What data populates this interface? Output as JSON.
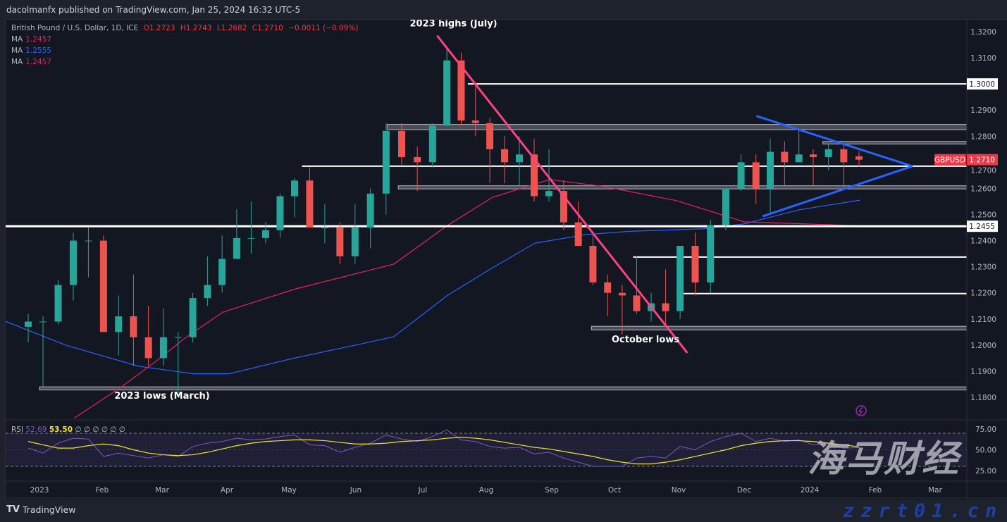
{
  "header": {
    "published": "dacolmanfx published on TradingView.com, Jan 25, 2024 16:32 UTC-5"
  },
  "legend": {
    "symbol": "British Pound / U.S. Dollar, 1D, ICE",
    "o": "O1.2723",
    "h": "H1.2743",
    "l": "L1.2682",
    "c": "C1.2710",
    "chg": "−0.0011 (−0.09%)",
    "ma": [
      {
        "label": "MA",
        "value": "1.2457",
        "color": "#e91e63"
      },
      {
        "label": "MA",
        "value": "1.2555",
        "color": "#2962ff"
      },
      {
        "label": "MA",
        "value": "1.2457",
        "color": "#e91e63"
      }
    ]
  },
  "rsi_legend": {
    "label": "RSI",
    "rsi": "52.69",
    "ma": "53.50",
    "empties": "∅ ∅ ∅ ∅ ∅ ∅"
  },
  "footer": {
    "brand": "TradingView"
  },
  "watermark": {
    "cn": "海马财经",
    "url": "zzrt01.cn"
  },
  "chart_data": {
    "type": "candlestick",
    "symbol_tag": "GBPUSD",
    "last_price": "1.2710",
    "colors": {
      "up": "#26a69a",
      "down": "#ef5350",
      "ma_pink": "#e91e63",
      "ma_blue": "#2962ff",
      "rsi": "#7e57c2",
      "rsi_ma": "#f5e51b",
      "last_tag": "#f23645"
    },
    "ylim": [
      1.176,
      1.324
    ],
    "y_ticks": [
      "1.3200",
      "1.3100",
      "1.3000",
      "1.2900",
      "1.2800",
      "1.2700",
      "1.2600",
      "1.2500",
      "1.2400",
      "1.2300",
      "1.2200",
      "1.2100",
      "1.2000",
      "1.1900",
      "1.1800"
    ],
    "x_ticks": [
      {
        "label": "2023",
        "date": "2023-01-03"
      },
      {
        "label": "Feb",
        "date": "2023-02-01"
      },
      {
        "label": "Mar",
        "date": "2023-03-01"
      },
      {
        "label": "Apr",
        "date": "2023-04-01"
      },
      {
        "label": "May",
        "date": "2023-05-01"
      },
      {
        "label": "Jun",
        "date": "2023-06-01"
      },
      {
        "label": "Jul",
        "date": "2023-07-01"
      },
      {
        "label": "Aug",
        "date": "2023-08-01"
      },
      {
        "label": "Sep",
        "date": "2023-09-01"
      },
      {
        "label": "Oct",
        "date": "2023-10-01"
      },
      {
        "label": "Nov",
        "date": "2023-11-01"
      },
      {
        "label": "Dec",
        "date": "2023-12-01"
      },
      {
        "label": "2024",
        "date": "2024-01-02"
      },
      {
        "label": "Feb",
        "date": "2024-02-01"
      },
      {
        "label": "Mar",
        "date": "2024-03-01"
      }
    ],
    "candles": [
      [
        "2022-12-26",
        1.207,
        1.212,
        1.201,
        1.209
      ],
      [
        "2023-01-02",
        1.209,
        1.211,
        1.184,
        1.209
      ],
      [
        "2023-01-09",
        1.209,
        1.225,
        1.208,
        1.223
      ],
      [
        "2023-01-16",
        1.223,
        1.243,
        1.217,
        1.24
      ],
      [
        "2023-01-23",
        1.24,
        1.245,
        1.226,
        1.24
      ],
      [
        "2023-01-30",
        1.24,
        1.242,
        1.205,
        1.205
      ],
      [
        "2023-02-06",
        1.205,
        1.219,
        1.196,
        1.211
      ],
      [
        "2023-02-13",
        1.211,
        1.227,
        1.192,
        1.203
      ],
      [
        "2023-02-20",
        1.203,
        1.215,
        1.192,
        1.195
      ],
      [
        "2023-02-27",
        1.195,
        1.214,
        1.192,
        1.203
      ],
      [
        "2023-03-06",
        1.203,
        1.205,
        1.18,
        1.203
      ],
      [
        "2023-03-13",
        1.203,
        1.22,
        1.201,
        1.218
      ],
      [
        "2023-03-20",
        1.218,
        1.234,
        1.215,
        1.223
      ],
      [
        "2023-03-27",
        1.223,
        1.242,
        1.22,
        1.233
      ],
      [
        "2023-04-03",
        1.233,
        1.252,
        1.233,
        1.241
      ],
      [
        "2023-04-10",
        1.241,
        1.255,
        1.235,
        1.241
      ],
      [
        "2023-04-17",
        1.241,
        1.247,
        1.239,
        1.244
      ],
      [
        "2023-04-24",
        1.244,
        1.258,
        1.241,
        1.257
      ],
      [
        "2023-05-01",
        1.257,
        1.264,
        1.249,
        1.263
      ],
      [
        "2023-05-08",
        1.263,
        1.268,
        1.245,
        1.245
      ],
      [
        "2023-05-15",
        1.245,
        1.254,
        1.239,
        1.245
      ],
      [
        "2023-05-22",
        1.245,
        1.247,
        1.231,
        1.234
      ],
      [
        "2023-05-29",
        1.234,
        1.254,
        1.231,
        1.245
      ],
      [
        "2023-06-05",
        1.245,
        1.26,
        1.237,
        1.258
      ],
      [
        "2023-06-12",
        1.258,
        1.285,
        1.25,
        1.282
      ],
      [
        "2023-06-19",
        1.282,
        1.285,
        1.269,
        1.272
      ],
      [
        "2023-06-26",
        1.272,
        1.276,
        1.259,
        1.27
      ],
      [
        "2023-07-03",
        1.27,
        1.285,
        1.268,
        1.284
      ],
      [
        "2023-07-10",
        1.284,
        1.314,
        1.284,
        1.309
      ],
      [
        "2023-07-17",
        1.309,
        1.312,
        1.284,
        1.286
      ],
      [
        "2023-07-24",
        1.286,
        1.299,
        1.28,
        1.285
      ],
      [
        "2023-07-31",
        1.285,
        1.287,
        1.262,
        1.275
      ],
      [
        "2023-08-07",
        1.275,
        1.28,
        1.262,
        1.27
      ],
      [
        "2023-08-14",
        1.27,
        1.28,
        1.261,
        1.273
      ],
      [
        "2023-08-21",
        1.273,
        1.279,
        1.255,
        1.257
      ],
      [
        "2023-08-28",
        1.257,
        1.275,
        1.255,
        1.259
      ],
      [
        "2023-09-04",
        1.259,
        1.263,
        1.244,
        1.247
      ],
      [
        "2023-09-11",
        1.247,
        1.255,
        1.238,
        1.238
      ],
      [
        "2023-09-18",
        1.238,
        1.242,
        1.223,
        1.224
      ],
      [
        "2023-09-25",
        1.224,
        1.227,
        1.211,
        1.22
      ],
      [
        "2023-10-02",
        1.22,
        1.223,
        1.204,
        1.219
      ],
      [
        "2023-10-09",
        1.219,
        1.234,
        1.212,
        1.213
      ],
      [
        "2023-10-16",
        1.213,
        1.22,
        1.209,
        1.216
      ],
      [
        "2023-10-23",
        1.216,
        1.229,
        1.207,
        1.213
      ],
      [
        "2023-10-30",
        1.213,
        1.238,
        1.21,
        1.238
      ],
      [
        "2023-11-06",
        1.238,
        1.243,
        1.219,
        1.224
      ],
      [
        "2023-11-13",
        1.224,
        1.248,
        1.22,
        1.246
      ],
      [
        "2023-11-20",
        1.246,
        1.259,
        1.244,
        1.26
      ],
      [
        "2023-11-27",
        1.26,
        1.273,
        1.259,
        1.27
      ],
      [
        "2023-12-04",
        1.27,
        1.273,
        1.254,
        1.26
      ],
      [
        "2023-12-11",
        1.26,
        1.279,
        1.25,
        1.274
      ],
      [
        "2023-12-18",
        1.274,
        1.278,
        1.261,
        1.27
      ],
      [
        "2023-12-25",
        1.27,
        1.283,
        1.27,
        1.273
      ],
      [
        "2024-01-01",
        1.273,
        1.275,
        1.261,
        1.272
      ],
      [
        "2024-01-08",
        1.272,
        1.277,
        1.267,
        1.275
      ],
      [
        "2024-01-15",
        1.275,
        1.277,
        1.26,
        1.27
      ],
      [
        "2024-01-22",
        1.2723,
        1.2743,
        1.2682,
        1.271
      ]
    ],
    "ma_pink": [
      [
        "2023-01-19",
        1.172
      ],
      [
        "2023-02-10",
        1.184
      ],
      [
        "2023-02-26",
        1.1937
      ],
      [
        "2023-03-12",
        1.2027
      ],
      [
        "2023-03-30",
        1.2126
      ],
      [
        "2023-05-04",
        1.2215
      ],
      [
        "2023-06-18",
        1.231
      ],
      [
        "2023-07-13",
        1.2458
      ],
      [
        "2023-08-04",
        1.2566
      ],
      [
        "2023-08-31",
        1.2634
      ],
      [
        "2023-09-26",
        1.2607
      ],
      [
        "2023-10-31",
        1.2553
      ],
      [
        "2023-12-01",
        1.2472
      ],
      [
        "2024-01-25",
        1.2457
      ]
    ],
    "ma_blue": [
      [
        "2022-12-17",
        1.2094
      ],
      [
        "2023-01-15",
        1.2
      ],
      [
        "2023-02-18",
        1.1919
      ],
      [
        "2023-03-16",
        1.189
      ],
      [
        "2023-04-02",
        1.189
      ],
      [
        "2023-05-04",
        1.1951
      ],
      [
        "2023-06-01",
        1.2
      ],
      [
        "2023-06-18",
        1.2032
      ],
      [
        "2023-07-13",
        1.219
      ],
      [
        "2023-08-04",
        1.2296
      ],
      [
        "2023-08-24",
        1.239
      ],
      [
        "2023-09-17",
        1.2423
      ],
      [
        "2023-10-09",
        1.2436
      ],
      [
        "2023-11-12",
        1.2445
      ],
      [
        "2023-12-01",
        1.2464
      ],
      [
        "2023-12-28",
        1.2518
      ],
      [
        "2024-01-25",
        1.2555
      ]
    ],
    "levels": [
      {
        "price": 1.3,
        "from": "2023-07-23",
        "label": "1.3000"
      },
      {
        "price": 1.2455,
        "from": "2022-12-01",
        "label": "1.2455",
        "thick": true
      },
      {
        "price": 1.2685,
        "from": "2023-05-07"
      },
      {
        "price": 1.2337,
        "from": "2023-10-10"
      },
      {
        "price": 1.2197,
        "from": "2023-10-31"
      }
    ],
    "zones": [
      {
        "top": 1.2845,
        "bottom": 1.2825,
        "from": "2023-06-15"
      },
      {
        "top": 1.278,
        "bottom": 1.277,
        "from": "2024-01-08"
      },
      {
        "top": 1.261,
        "bottom": 1.2598,
        "from": "2023-06-20"
      },
      {
        "top": 1.2072,
        "bottom": 1.2058,
        "from": "2023-09-20"
      },
      {
        "top": 1.184,
        "bottom": 1.1828,
        "from": "2023-01-03"
      }
    ],
    "trendlines": [
      {
        "color": "#ff4081",
        "from": [
          "2023-07-08",
          1.3185
        ],
        "to": [
          "2023-11-05",
          1.197
        ]
      },
      {
        "color": "#2962ff",
        "from": [
          "2023-12-07",
          1.2877
        ],
        "to": [
          "2024-02-19",
          1.2685
        ]
      },
      {
        "color": "#2962ff",
        "from": [
          "2023-12-10",
          1.2493
        ],
        "to": [
          "2024-02-19",
          1.2685
        ]
      }
    ],
    "annotations": [
      {
        "text": "2023 highs (July)",
        "date": "2023-07-16",
        "price": 1.322
      },
      {
        "text": "October lows",
        "date": "2023-10-16",
        "price": 1.201
      },
      {
        "text": "2023 lows (March)",
        "date": "2023-03-01",
        "price": 1.1795
      }
    ],
    "rsi": {
      "ylim": [
        0,
        100
      ],
      "ticks": [
        "75.00",
        "50.00",
        "25.00"
      ],
      "bands": [
        70,
        30
      ],
      "values": [
        52,
        46,
        58,
        64,
        63,
        42,
        46,
        43,
        40,
        44,
        42,
        54,
        58,
        60,
        64,
        62,
        63,
        66,
        68,
        56,
        55,
        47,
        53,
        58,
        68,
        63,
        60,
        66,
        74,
        62,
        60,
        54,
        52,
        53,
        45,
        47,
        40,
        35,
        30,
        30,
        30,
        40,
        42,
        40,
        54,
        50,
        60,
        66,
        70,
        60,
        64,
        60,
        62,
        56,
        58,
        52,
        52.69
      ],
      "ma_values": [
        60,
        56,
        52,
        52,
        55,
        57,
        55,
        50,
        46,
        44,
        43,
        44,
        47,
        51,
        55,
        58,
        60,
        61,
        62,
        62,
        61,
        59,
        57,
        57,
        58,
        60,
        61,
        62,
        64,
        65,
        64,
        62,
        59,
        56,
        53,
        51,
        48,
        45,
        42,
        38,
        35,
        33,
        33,
        35,
        38,
        42,
        46,
        50,
        55,
        58,
        60,
        61,
        61,
        60,
        58,
        56,
        53.5
      ]
    }
  }
}
